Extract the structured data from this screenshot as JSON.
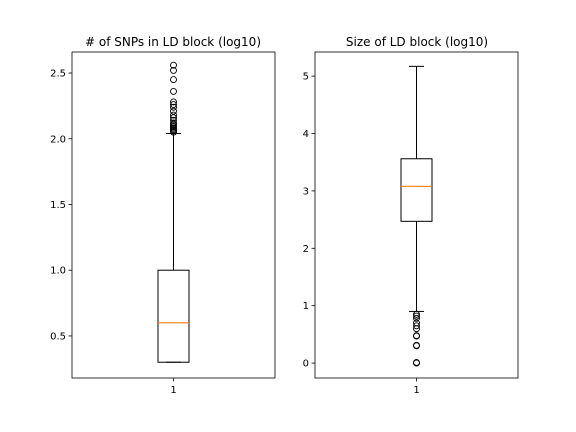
{
  "chart_data": [
    {
      "type": "boxplot",
      "title": "# of SNPs in LD block (log10)",
      "xlabel": "",
      "ylabel": "",
      "categories": [
        "1"
      ],
      "ylim": [
        0.18,
        2.66
      ],
      "yticks": [
        0.5,
        1.0,
        1.5,
        2.0,
        2.5
      ],
      "ytick_labels": [
        "0.5",
        "1.0",
        "1.5",
        "2.0",
        "2.5"
      ],
      "box": {
        "whislo": 0.3,
        "q1": 0.3,
        "med": 0.6,
        "q3": 1.0,
        "whishi": 2.04
      },
      "fliers": [
        2.05,
        2.06,
        2.07,
        2.08,
        2.09,
        2.1,
        2.11,
        2.12,
        2.14,
        2.16,
        2.18,
        2.21,
        2.24,
        2.26,
        2.28,
        2.36,
        2.45,
        2.52,
        2.56
      ],
      "grid": false,
      "legend": "none"
    },
    {
      "type": "boxplot",
      "title": "Size of LD block (log10)",
      "xlabel": "",
      "ylabel": "",
      "categories": [
        "1"
      ],
      "ylim": [
        -0.26,
        5.42
      ],
      "yticks": [
        0,
        1,
        2,
        3,
        4,
        5
      ],
      "ytick_labels": [
        "0",
        "1",
        "2",
        "3",
        "4",
        "5"
      ],
      "box": {
        "whislo": 0.9,
        "q1": 2.47,
        "med": 3.08,
        "q3": 3.56,
        "whishi": 5.17
      },
      "fliers": [
        0.0,
        0.01,
        0.3,
        0.31,
        0.47,
        0.48,
        0.6,
        0.65,
        0.7,
        0.78,
        0.82,
        0.85
      ],
      "grid": false,
      "legend": "none"
    }
  ],
  "colors": {
    "box": "#000000",
    "median": "#ff7f0e",
    "flier": "#000000",
    "background": "#ffffff"
  }
}
